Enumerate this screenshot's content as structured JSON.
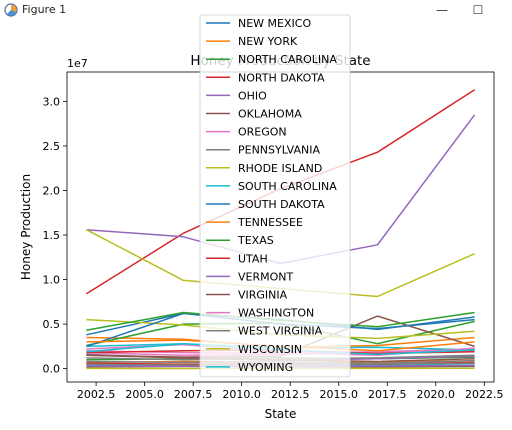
{
  "window": {
    "title": "Figure 1",
    "minimize_glyph": "—",
    "maximize_glyph": "☐",
    "icon": "matplotlib-figure-icon"
  },
  "chart_data": {
    "type": "line",
    "title": "Honey Production by State",
    "xlabel": "State",
    "ylabel": "Honey Production",
    "offset_text": "1e7",
    "xlim": [
      2001.0,
      2023.0
    ],
    "ylim": [
      -1500000.0,
      33300000.0
    ],
    "x_ticks": [
      2002.5,
      2005.0,
      2007.5,
      2010.0,
      2012.5,
      2015.0,
      2017.5,
      2020.0,
      2022.5
    ],
    "x_tick_labels": [
      "2002.5",
      "2005.0",
      "2007.5",
      "2010.0",
      "2012.5",
      "2015.0",
      "2017.5",
      "2020.0",
      "2022.5"
    ],
    "y_ticks": [
      0,
      5000000,
      10000000,
      15000000,
      20000000,
      25000000,
      30000000
    ],
    "y_tick_labels": [
      "0.0",
      "0.5",
      "1.0",
      "1.5",
      "2.0",
      "2.5",
      "3.0"
    ],
    "grid": false,
    "legend_placement": "upper-center",
    "x": [
      2002,
      2007,
      2012,
      2017,
      2022
    ],
    "series": [
      {
        "name": "NEW MEXICO",
        "color": "#1f77b4",
        "values": [
          200000,
          350000,
          300000,
          280000,
          250000
        ]
      },
      {
        "name": "NEW YORK",
        "color": "#ff7f0e",
        "values": [
          3500000,
          3300000,
          2400000,
          2600000,
          3500000
        ]
      },
      {
        "name": "NORTH CAROLINA",
        "color": "#2ca02c",
        "values": [
          1000000,
          1100000,
          1200000,
          1100000,
          1300000
        ]
      },
      {
        "name": "NORTH DAKOTA",
        "color": "#d62728",
        "values": [
          8400000,
          15200000,
          20200000,
          24300000,
          31300000
        ]
      },
      {
        "name": "OHIO",
        "color": "#9467bd",
        "values": [
          1600000,
          1200000,
          900000,
          1100000,
          1400000
        ]
      },
      {
        "name": "OKLAHOMA",
        "color": "#8c564b",
        "values": [
          200000,
          250000,
          220000,
          200000,
          260000
        ]
      },
      {
        "name": "OREGON",
        "color": "#e377c2",
        "values": [
          1800000,
          1500000,
          1600000,
          1800000,
          2000000
        ]
      },
      {
        "name": "PENNSYLVANIA",
        "color": "#7f7f7f",
        "values": [
          1200000,
          1000000,
          1100000,
          1200000,
          1500000
        ]
      },
      {
        "name": "RHODE ISLAND",
        "color": "#bcbd22",
        "values": [
          30000,
          20000,
          25000,
          30000,
          40000
        ]
      },
      {
        "name": "SOUTH CAROLINA",
        "color": "#17becf",
        "values": [
          400000,
          500000,
          450000,
          400000,
          550000
        ]
      },
      {
        "name": "SOUTH DAKOTA",
        "color": "#1f77b4",
        "values": [
          3800000,
          6200000,
          5500000,
          4400000,
          5800000
        ]
      },
      {
        "name": "TENNESSEE",
        "color": "#ff7f0e",
        "values": [
          700000,
          800000,
          750000,
          700000,
          900000
        ]
      },
      {
        "name": "TEXAS",
        "color": "#2ca02c",
        "values": [
          2600000,
          5000000,
          5100000,
          2800000,
          5300000
        ]
      },
      {
        "name": "UTAH",
        "color": "#d62728",
        "values": [
          600000,
          500000,
          550000,
          500000,
          700000
        ]
      },
      {
        "name": "VERMONT",
        "color": "#9467bd",
        "values": [
          300000,
          250000,
          280000,
          300000,
          350000
        ]
      },
      {
        "name": "VIRGINIA",
        "color": "#8c564b",
        "values": [
          1500000,
          1300000,
          1400000,
          5900000,
          2500000
        ]
      },
      {
        "name": "WASHINGTON",
        "color": "#e377c2",
        "values": [
          2000000,
          1800000,
          1700000,
          1900000,
          2200000
        ]
      },
      {
        "name": "WEST VIRGINIA",
        "color": "#7f7f7f",
        "values": [
          500000,
          400000,
          450000,
          500000,
          600000
        ]
      },
      {
        "name": "WISCONSIN",
        "color": "#bcbd22",
        "values": [
          5500000,
          4900000,
          3800000,
          3400000,
          4200000
        ]
      },
      {
        "name": "WYOMING",
        "color": "#17becf",
        "values": [
          2500000,
          2800000,
          2300000,
          2400000,
          2100000
        ]
      },
      {
        "color": "#1f77b4",
        "values": [
          2500000,
          6200000,
          5000000,
          4500000,
          5500000
        ]
      },
      {
        "color": "#ff7f0e",
        "values": [
          3000000,
          3200000,
          2500000,
          2000000,
          3000000
        ]
      },
      {
        "color": "#2ca02c",
        "values": [
          4300000,
          6300000,
          5400000,
          4700000,
          6300000
        ]
      },
      {
        "color": "#d62728",
        "values": [
          1800000,
          2000000,
          2100000,
          1700000,
          1900000
        ]
      },
      {
        "color": "#9467bd",
        "values": [
          15600000,
          14800000,
          11800000,
          13900000,
          28500000
        ]
      },
      {
        "color": "#8c564b",
        "values": [
          1500000,
          1200000,
          1000000,
          800000,
          1100000
        ]
      },
      {
        "color": "#e377c2",
        "values": [
          2200000,
          2700000,
          1800000,
          1500000,
          2300000
        ]
      },
      {
        "color": "#7f7f7f",
        "values": [
          800000,
          700000,
          750000,
          600000,
          900000
        ]
      },
      {
        "color": "#bcbd22",
        "values": [
          15600000,
          9900000,
          9000000,
          8100000,
          12900000
        ]
      },
      {
        "color": "#17becf",
        "values": [
          1900000,
          2800000,
          2100000,
          1600000,
          2100000
        ]
      }
    ]
  }
}
